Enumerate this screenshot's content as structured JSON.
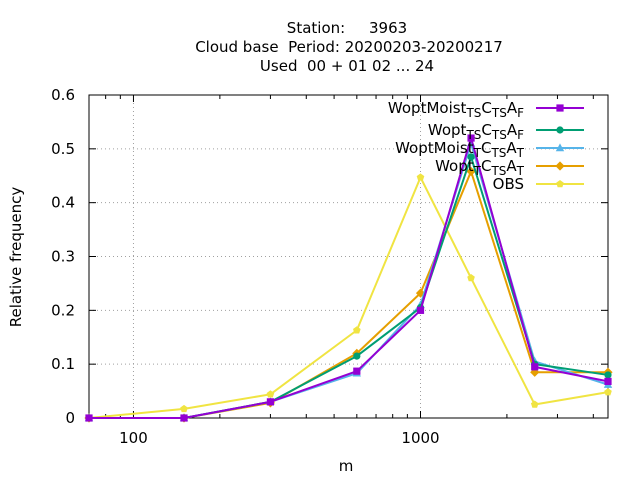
{
  "chart_data": {
    "type": "line",
    "title_lines": [
      "Station:     3963",
      "Cloud base  Period: 20200203-20200217",
      "Used  00 + 01 02 ... 24"
    ],
    "xlabel": "m",
    "ylabel": "Relative frequency",
    "x_scale": "log",
    "xlim": [
      70,
      4500
    ],
    "ylim": [
      0,
      0.6
    ],
    "grid": true,
    "legend_position": "top-right",
    "x_ticks": [
      100,
      1000
    ],
    "x_tick_labels": [
      "100",
      "1000"
    ],
    "y_ticks": [
      0,
      0.1,
      0.2,
      0.3,
      0.4,
      0.5,
      0.6
    ],
    "y_tick_labels": [
      "0",
      "0.1",
      "0.2",
      "0.3",
      "0.4",
      "0.5",
      "0.6"
    ],
    "x": [
      70,
      150,
      300,
      600,
      1000,
      1500,
      2500,
      4500
    ],
    "series": [
      {
        "name_parts": [
          [
            "WoptMoist",
            "n"
          ],
          [
            "TS",
            "sub"
          ],
          [
            "C",
            "n"
          ],
          [
            "TS",
            "sub"
          ],
          [
            "A",
            "n"
          ],
          [
            "F",
            "sub"
          ]
        ],
        "color": "#9400d3",
        "marker": "square",
        "values": [
          0,
          0,
          0.03,
          0.087,
          0.2,
          0.52,
          0.095,
          0.068
        ]
      },
      {
        "name_parts": [
          [
            "Wopt",
            "n"
          ],
          [
            "TS",
            "sub"
          ],
          [
            "C",
            "n"
          ],
          [
            "TS",
            "sub"
          ],
          [
            "A",
            "n"
          ],
          [
            "F",
            "sub"
          ]
        ],
        "color": "#009e73",
        "marker": "circle",
        "values": [
          0,
          0,
          0.03,
          0.115,
          0.205,
          0.485,
          0.1,
          0.08
        ]
      },
      {
        "name_parts": [
          [
            "WoptMoist",
            "n"
          ],
          [
            "T",
            "sub"
          ],
          [
            "C",
            "n"
          ],
          [
            "TS",
            "sub"
          ],
          [
            "A",
            "n"
          ],
          [
            "T",
            "sub"
          ]
        ],
        "color": "#56b4e9",
        "marker": "triangle",
        "values": [
          0,
          0,
          0.03,
          0.083,
          0.21,
          0.51,
          0.105,
          0.062
        ]
      },
      {
        "name_parts": [
          [
            "Wopt",
            "n"
          ],
          [
            "T",
            "sub"
          ],
          [
            "C",
            "n"
          ],
          [
            "TS",
            "sub"
          ],
          [
            "A",
            "n"
          ],
          [
            "T",
            "sub"
          ]
        ],
        "color": "#e69f00",
        "marker": "diamond",
        "values": [
          0,
          0,
          0.028,
          0.12,
          0.232,
          0.458,
          0.085,
          0.085
        ]
      },
      {
        "name_parts": [
          [
            "OBS",
            "n"
          ]
        ],
        "color": "#f0e442",
        "marker": "pentagon",
        "values": [
          0,
          0.017,
          0.044,
          0.163,
          0.447,
          0.26,
          0.025,
          0.048
        ]
      }
    ]
  }
}
